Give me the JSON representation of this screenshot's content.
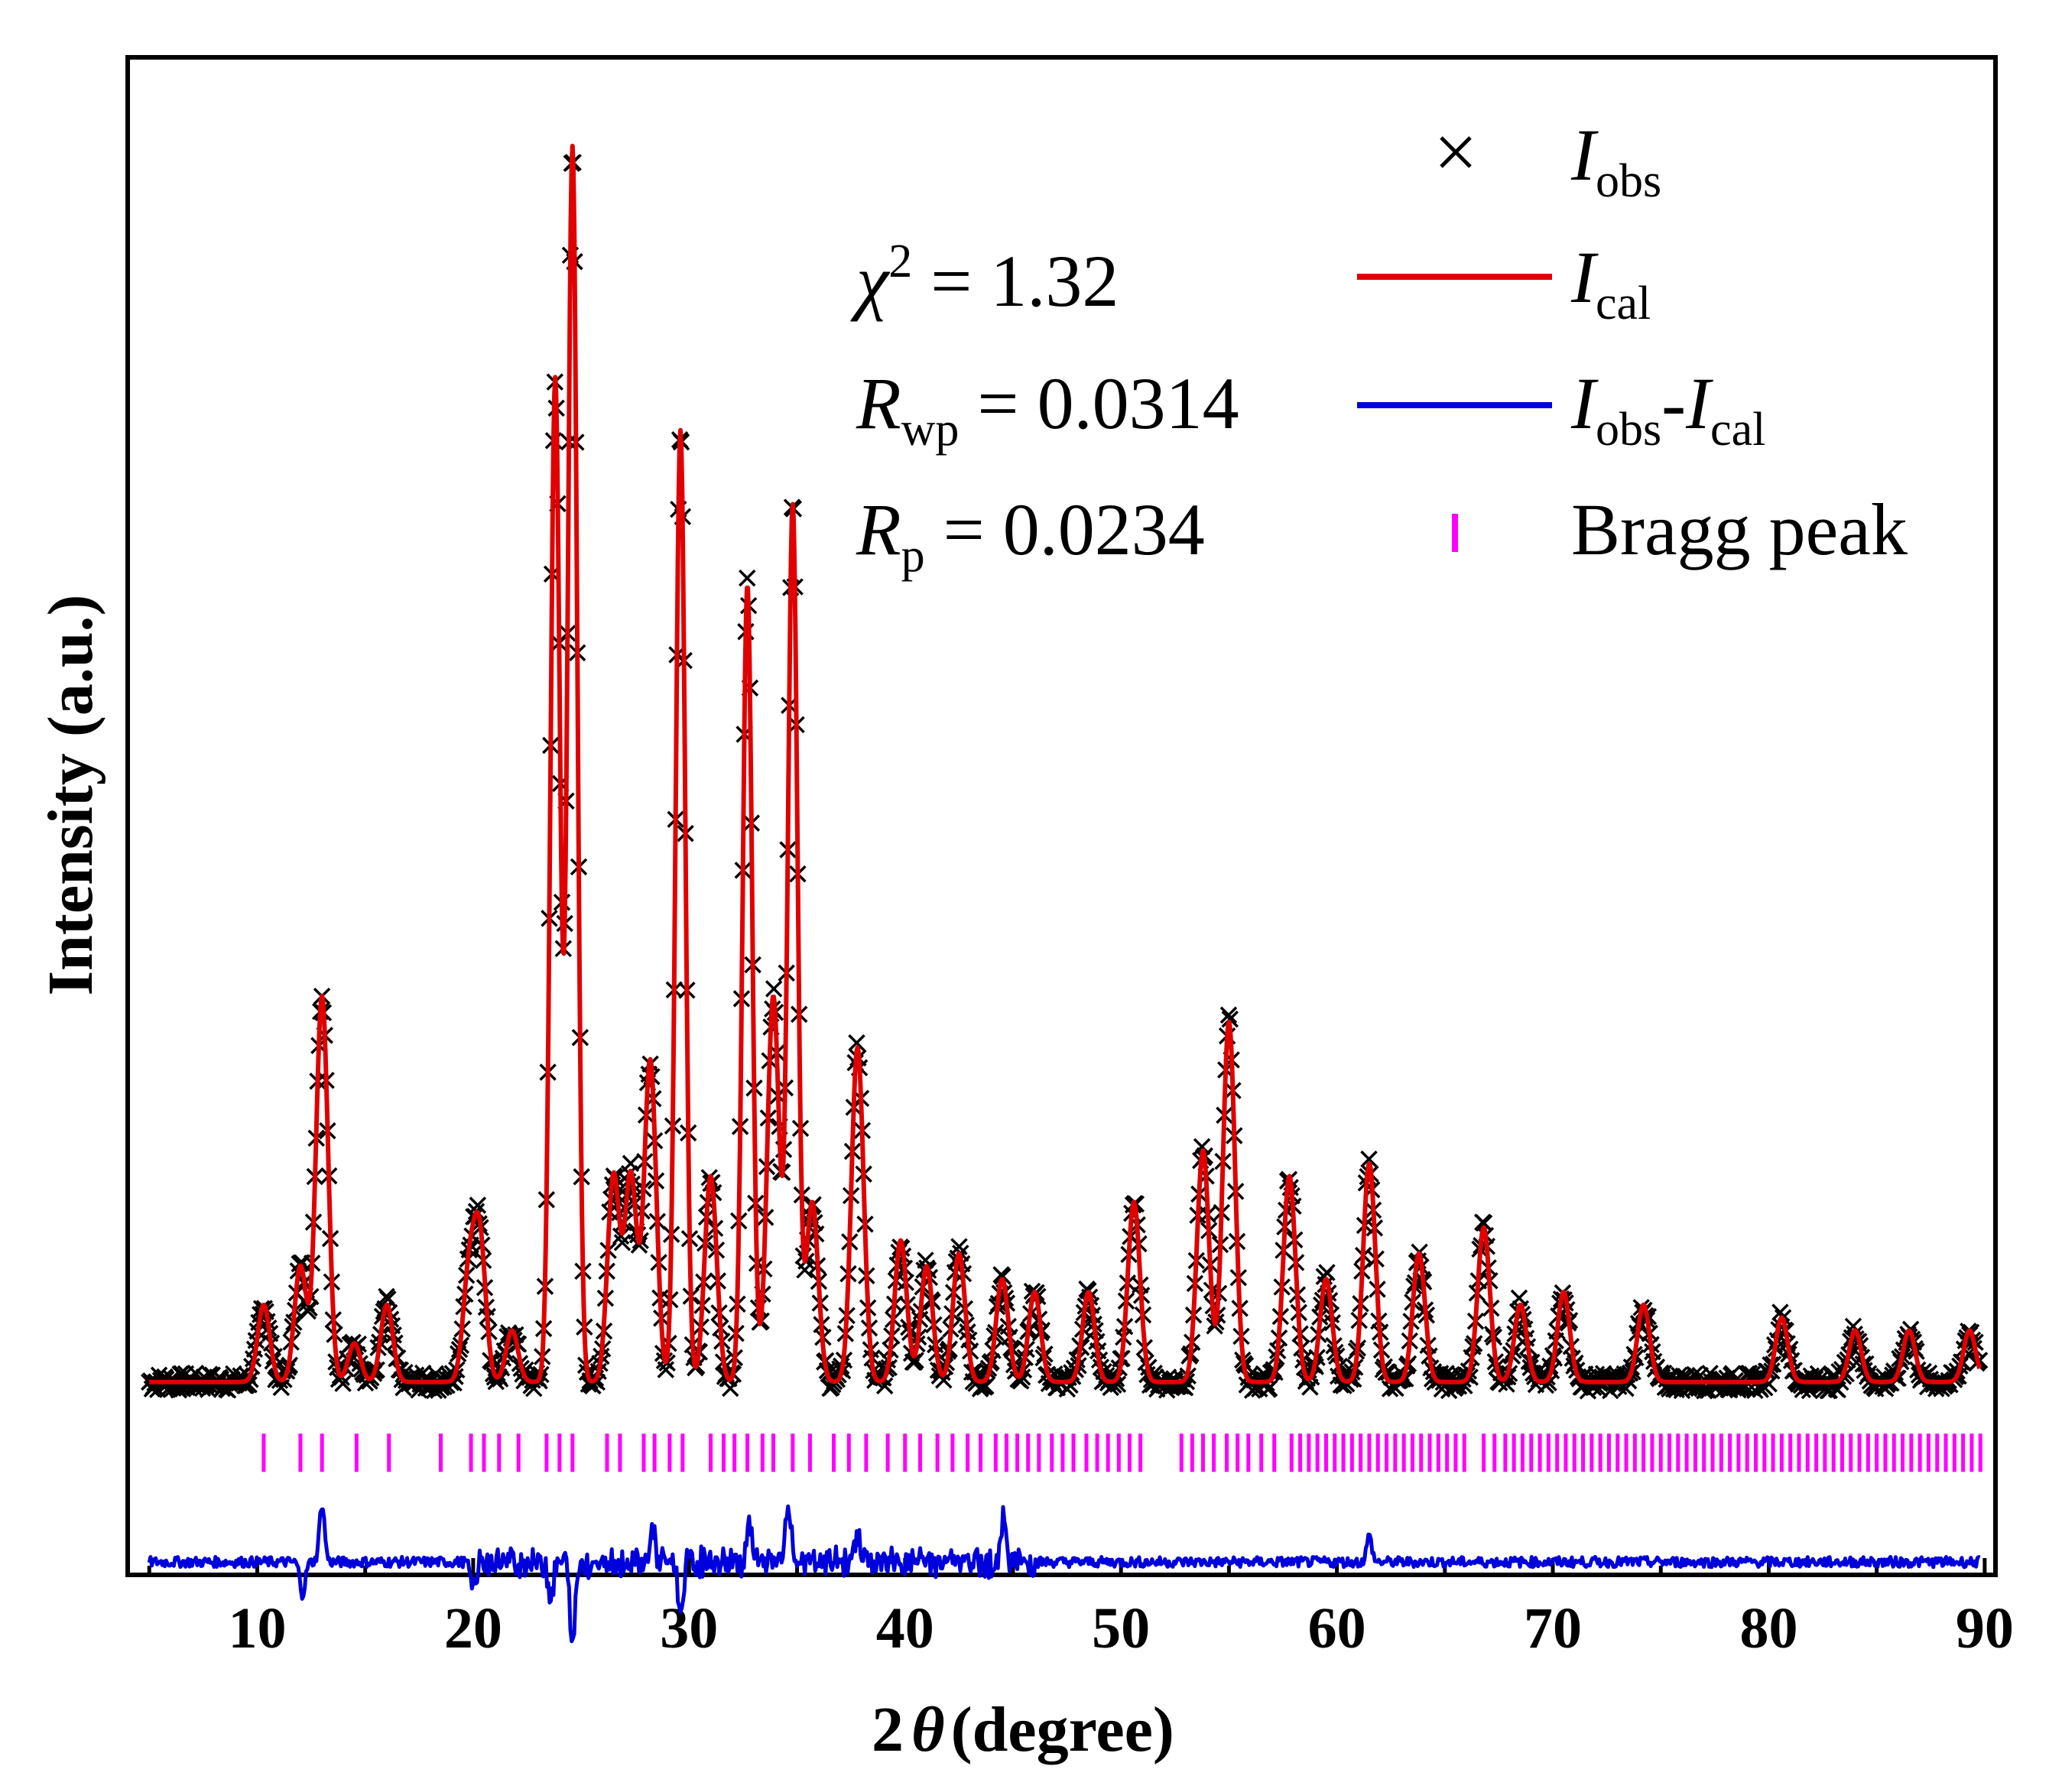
{
  "chart_data": {
    "type": "line",
    "title": "",
    "xlabel": "2θ (degree)",
    "xlabel_parts": {
      "prefix": "2",
      "theta": "θ",
      "suffix": "(degree)"
    },
    "ylabel": "Intensity (a.u.)",
    "xlim": [
      4,
      90.5
    ],
    "ylim": [
      -13,
      105
    ],
    "x_ticks": [
      10,
      20,
      30,
      40,
      50,
      60,
      70,
      80,
      90
    ],
    "y_ticks_shown": false,
    "grid": false,
    "legend_position": "top-right",
    "legend": [
      {
        "marker": "x",
        "label_main": "I",
        "label_sub": "obs"
      },
      {
        "marker": "line",
        "color": "#e00000",
        "label_main": "I",
        "label_sub": "cal"
      },
      {
        "marker": "line",
        "color": "#0000dd",
        "label_main": "I",
        "label_sub": "obs",
        "label_main2": "-I",
        "label_sub2": "cal"
      },
      {
        "marker": "bar",
        "color": "#ff00ff",
        "label": "Bragg peak"
      }
    ],
    "statistics": [
      {
        "symbol": "χ",
        "sup": "2",
        "value": " = 1.32"
      },
      {
        "symbol": "R",
        "sub": "wp",
        "value": " = 0.0314"
      },
      {
        "symbol": "R",
        "sub": "p",
        "value": " = 0.0234"
      }
    ],
    "series": [
      {
        "name": "I_obs",
        "style": "x-markers",
        "color": "#000000",
        "baseline": 2,
        "peaks": [
          {
            "x": 10.3,
            "h": 6
          },
          {
            "x": 12.0,
            "h": 9
          },
          {
            "x": 13.0,
            "h": 30
          },
          {
            "x": 14.5,
            "h": 3
          },
          {
            "x": 16.0,
            "h": 6
          },
          {
            "x": 19.8,
            "h": 8
          },
          {
            "x": 20.3,
            "h": 11
          },
          {
            "x": 21.8,
            "h": 4
          },
          {
            "x": 23.8,
            "h": 78
          },
          {
            "x": 24.6,
            "h": 96
          },
          {
            "x": 26.5,
            "h": 16
          },
          {
            "x": 27.3,
            "h": 16
          },
          {
            "x": 28.2,
            "h": 25
          },
          {
            "x": 29.6,
            "h": 74
          },
          {
            "x": 31.0,
            "h": 16
          },
          {
            "x": 32.7,
            "h": 62
          },
          {
            "x": 33.9,
            "h": 30
          },
          {
            "x": 34.8,
            "h": 68
          },
          {
            "x": 35.7,
            "h": 14
          },
          {
            "x": 37.8,
            "h": 26
          },
          {
            "x": 39.8,
            "h": 11
          },
          {
            "x": 41.0,
            "h": 9
          },
          {
            "x": 42.5,
            "h": 10
          },
          {
            "x": 44.5,
            "h": 8
          },
          {
            "x": 46.0,
            "h": 7
          },
          {
            "x": 48.5,
            "h": 7
          },
          {
            "x": 50.6,
            "h": 14
          },
          {
            "x": 53.8,
            "h": 18
          },
          {
            "x": 55.0,
            "h": 28
          },
          {
            "x": 57.8,
            "h": 16
          },
          {
            "x": 59.5,
            "h": 8
          },
          {
            "x": 61.5,
            "h": 17
          },
          {
            "x": 63.8,
            "h": 10
          },
          {
            "x": 66.8,
            "h": 12
          },
          {
            "x": 68.5,
            "h": 6
          },
          {
            "x": 70.5,
            "h": 7
          },
          {
            "x": 74.2,
            "h": 6
          },
          {
            "x": 80.6,
            "h": 5
          },
          {
            "x": 84.0,
            "h": 4
          },
          {
            "x": 86.5,
            "h": 4
          },
          {
            "x": 89.3,
            "h": 4
          }
        ]
      },
      {
        "name": "I_cal",
        "style": "line",
        "color": "#e00000",
        "same_profile_as": "I_obs"
      },
      {
        "name": "I_obs-I_cal",
        "style": "line",
        "color": "#0000dd",
        "offset": -12,
        "features": [
          {
            "x": 12.1,
            "d": -2.5
          },
          {
            "x": 13.0,
            "d": 4.5
          },
          {
            "x": 20.0,
            "d": -2.0
          },
          {
            "x": 23.6,
            "d": -2.5
          },
          {
            "x": 24.6,
            "d": -6.5
          },
          {
            "x": 28.3,
            "d": 2.5
          },
          {
            "x": 29.6,
            "d": -4.0
          },
          {
            "x": 32.8,
            "d": 2.8
          },
          {
            "x": 34.6,
            "d": 4.5
          },
          {
            "x": 37.8,
            "d": 2.5
          },
          {
            "x": 44.6,
            "d": 3.5
          },
          {
            "x": 61.5,
            "d": 2.0
          }
        ]
      },
      {
        "name": "Bragg peak",
        "style": "ticks",
        "color": "#ff00ff",
        "level": -3.5,
        "positions": [
          10.3,
          12.0,
          13.0,
          14.6,
          16.1,
          18.5,
          19.9,
          20.5,
          21.2,
          22.1,
          23.4,
          24.0,
          24.6,
          26.2,
          26.8,
          27.9,
          28.4,
          29.1,
          29.7,
          31.0,
          31.6,
          32.1,
          32.7,
          33.4,
          33.9,
          34.8,
          35.6,
          36.7,
          37.4,
          38.2,
          39.2,
          40.0,
          40.7,
          41.5,
          42.2,
          42.9,
          43.5,
          44.2,
          44.7,
          45.2,
          45.7,
          46.2,
          46.8,
          47.3,
          47.8,
          48.4,
          48.9,
          49.4,
          49.9,
          50.4,
          50.9,
          52.8,
          53.3,
          53.8,
          54.3,
          54.9,
          55.4,
          55.9,
          56.5,
          57.1,
          57.9,
          58.3,
          58.7,
          59.1,
          59.5,
          59.9,
          60.3,
          60.7,
          61.1,
          61.5,
          61.9,
          62.3,
          62.7,
          63.1,
          63.5,
          63.9,
          64.3,
          64.7,
          65.1,
          65.5,
          65.9,
          66.8,
          67.3,
          67.8,
          68.2,
          68.6,
          69.0,
          69.4,
          69.8,
          70.2,
          70.6,
          71.0,
          71.4,
          71.8,
          72.2,
          72.6,
          73.0,
          73.4,
          73.8,
          74.2,
          74.6,
          75.0,
          75.4,
          75.8,
          76.2,
          76.6,
          77.0,
          77.4,
          77.8,
          78.2,
          78.6,
          79.0,
          79.4,
          79.8,
          80.2,
          80.6,
          81.0,
          81.4,
          81.8,
          82.2,
          82.6,
          83.0,
          83.4,
          83.8,
          84.2,
          84.6,
          85.0,
          85.4,
          85.8,
          86.2,
          86.6,
          87.0,
          87.4,
          87.8,
          88.2,
          88.6,
          89.0,
          89.4,
          89.8
        ]
      }
    ]
  }
}
